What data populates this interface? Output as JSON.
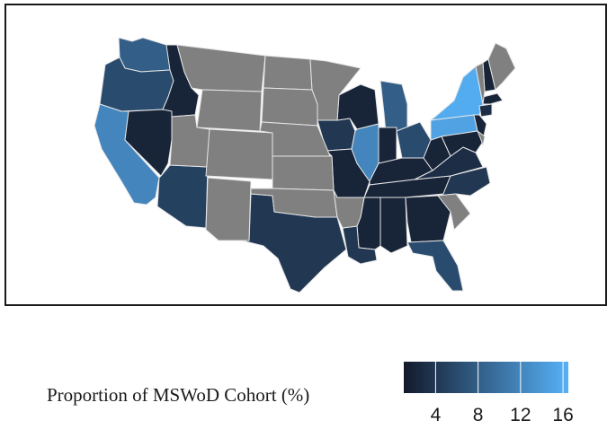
{
  "legend": {
    "title": "Proportion of MSWoD Cohort (%)",
    "tick_labels": [
      "4",
      "8",
      "12",
      "16"
    ],
    "ticks": [
      4,
      8,
      12,
      16
    ],
    "range": [
      1,
      16.5
    ],
    "low_color": "#141a2b",
    "high_color": "#56b1f7"
  },
  "colors": {
    "no_data": "#808080",
    "borders": "#e6e6e6",
    "frame": "#1a1a1a"
  },
  "states": [
    {
      "name": "WA",
      "value": 8
    },
    {
      "name": "OR",
      "value": 6
    },
    {
      "name": "CA",
      "value": 12
    },
    {
      "name": "ID",
      "value": 2
    },
    {
      "name": "NV",
      "value": 2
    },
    {
      "name": "AZ",
      "value": 5
    },
    {
      "name": "TX",
      "value": 4
    },
    {
      "name": "IA",
      "value": 4
    },
    {
      "name": "MO",
      "value": 2
    },
    {
      "name": "WI",
      "value": 2
    },
    {
      "name": "IL",
      "value": 12
    },
    {
      "name": "MI",
      "value": 8
    },
    {
      "name": "IN",
      "value": 2
    },
    {
      "name": "OH",
      "value": 6
    },
    {
      "name": "KY",
      "value": 2
    },
    {
      "name": "TN",
      "value": 2
    },
    {
      "name": "MS",
      "value": 2
    },
    {
      "name": "AL",
      "value": 2
    },
    {
      "name": "GA",
      "value": 2
    },
    {
      "name": "FL",
      "value": 6
    },
    {
      "name": "LA",
      "value": 4
    },
    {
      "name": "NC",
      "value": 4
    },
    {
      "name": "VA",
      "value": 3
    },
    {
      "name": "WV",
      "value": 2
    },
    {
      "name": "PA",
      "value": 15
    },
    {
      "name": "NY",
      "value": 16
    },
    {
      "name": "MD",
      "value": 2
    },
    {
      "name": "NJ",
      "value": 2
    },
    {
      "name": "MA",
      "value": 2
    },
    {
      "name": "NH",
      "value": 2
    },
    {
      "name": "CT",
      "value": 3
    },
    {
      "name": "MT",
      "value": null
    },
    {
      "name": "WY",
      "value": null
    },
    {
      "name": "UT",
      "value": null
    },
    {
      "name": "CO",
      "value": null
    },
    {
      "name": "NM",
      "value": null
    },
    {
      "name": "ND",
      "value": null
    },
    {
      "name": "SD",
      "value": null
    },
    {
      "name": "NE",
      "value": null
    },
    {
      "name": "KS",
      "value": null
    },
    {
      "name": "OK",
      "value": null
    },
    {
      "name": "MN",
      "value": null
    },
    {
      "name": "AR",
      "value": null
    },
    {
      "name": "SC",
      "value": null
    },
    {
      "name": "ME",
      "value": null
    },
    {
      "name": "VT",
      "value": null
    },
    {
      "name": "DE",
      "value": null
    }
  ]
}
